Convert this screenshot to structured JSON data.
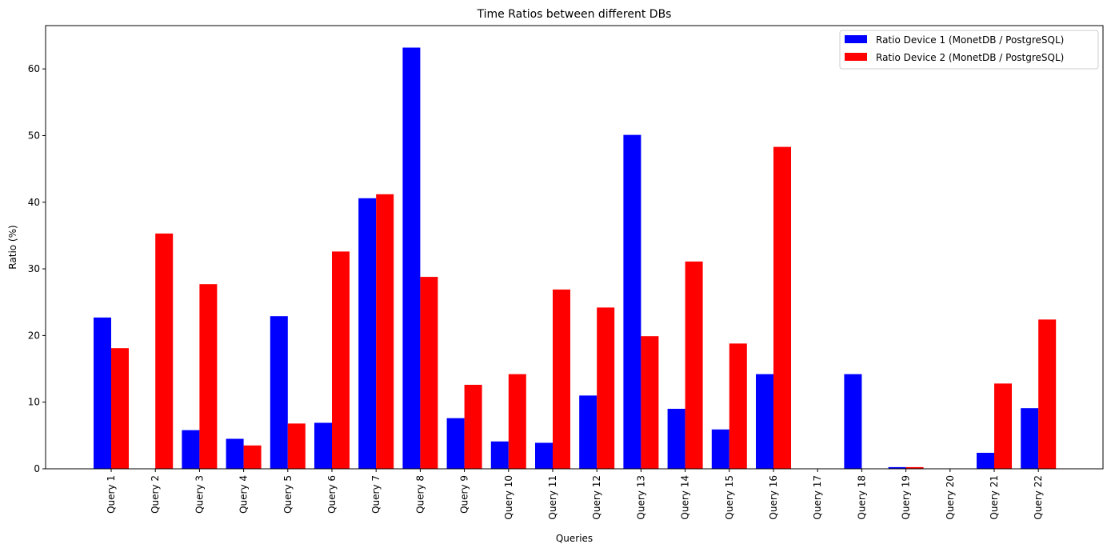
{
  "chart_data": {
    "type": "bar",
    "title": "Time Ratios between different DBs",
    "xlabel": "Queries",
    "ylabel": "Ratio (%)",
    "ylim": [
      0,
      66.5
    ],
    "yticks": [
      0,
      10,
      20,
      30,
      40,
      50,
      60
    ],
    "grid": false,
    "legend_position": "top-right",
    "categories": [
      "Query 1",
      "Query 2",
      "Query 3",
      "Query 4",
      "Query 5",
      "Query 6",
      "Query 7",
      "Query 8",
      "Query 9",
      "Query 10",
      "Query 11",
      "Query 12",
      "Query 13",
      "Query 14",
      "Query 15",
      "Query 16",
      "Query 17",
      "Query 18",
      "Query 19",
      "Query 20",
      "Query 21",
      "Query 22"
    ],
    "series": [
      {
        "name": "Ratio Device 1 (MonetDB / PostgreSQL)",
        "color": "#0000ff",
        "values": [
          22.7,
          0,
          5.8,
          4.5,
          22.9,
          6.9,
          40.6,
          63.2,
          7.6,
          4.1,
          3.9,
          11.0,
          50.1,
          9.0,
          5.9,
          14.2,
          0,
          14.2,
          0.25,
          0,
          2.4,
          9.1
        ]
      },
      {
        "name": "Ratio Device 2 (MonetDB / PostgreSQL)",
        "color": "#ff0000",
        "values": [
          18.1,
          35.3,
          27.7,
          3.5,
          6.8,
          32.6,
          41.2,
          28.8,
          12.6,
          14.2,
          26.9,
          24.2,
          19.9,
          31.1,
          18.8,
          48.3,
          0,
          0,
          0.25,
          0,
          12.8,
          22.4
        ]
      }
    ]
  }
}
